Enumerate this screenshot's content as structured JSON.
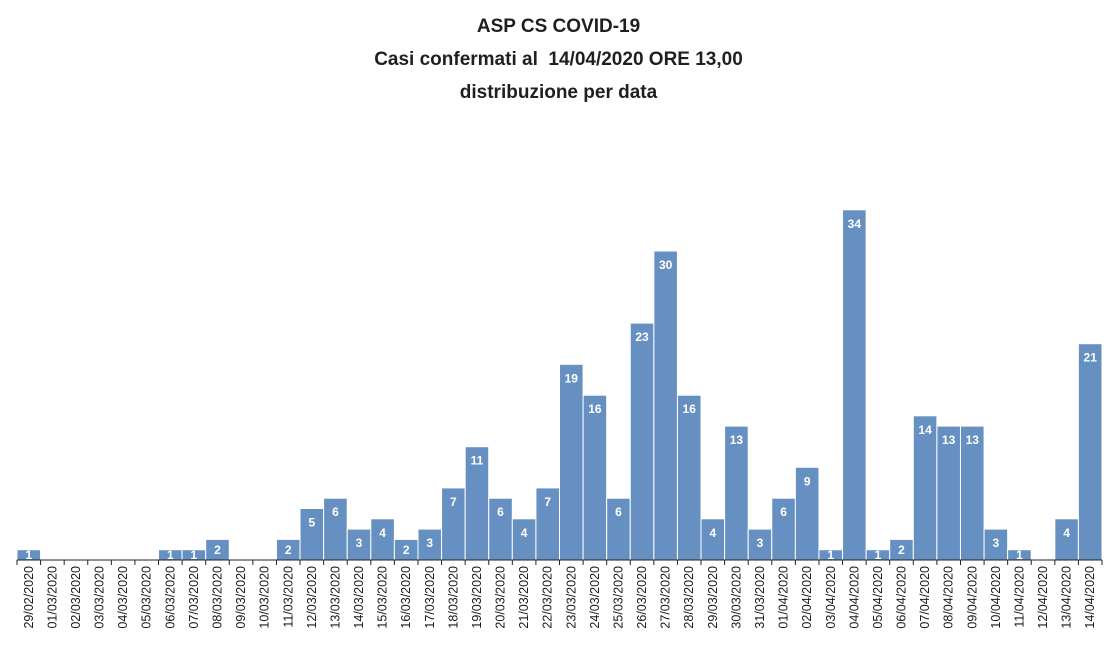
{
  "chart_data": {
    "type": "bar",
    "title": "ASP CS COVID-19",
    "subtitle_lines": [
      "Casi confermati al  14/04/2020 ORE 13,00",
      "distribuzione per data"
    ],
    "xlabel": "",
    "ylabel": "",
    "ylim": [
      0,
      34
    ],
    "grid": false,
    "legend": "none",
    "bar_color": "#6790c2",
    "label_color": "#ffffff",
    "categories": [
      "29/02/2020",
      "01/03/2020",
      "02/03/2020",
      "03/03/2020",
      "04/03/2020",
      "05/03/2020",
      "06/03/2020",
      "07/03/2020",
      "08/03/2020",
      "09/03/2020",
      "10/03/2020",
      "11/03/2020",
      "12/03/2020",
      "13/03/2020",
      "14/03/2020",
      "15/03/2020",
      "16/03/2020",
      "17/03/2020",
      "18/03/2020",
      "19/03/2020",
      "20/03/2020",
      "21/03/2020",
      "22/03/2020",
      "23/03/2020",
      "24/03/2020",
      "25/03/2020",
      "26/03/2020",
      "27/03/2020",
      "28/03/2020",
      "29/03/2020",
      "30/03/2020",
      "31/03/2020",
      "01/04/2020",
      "02/04/2020",
      "03/04/2020",
      "04/04/2020",
      "05/04/2020",
      "06/04/2020",
      "07/04/2020",
      "08/04/2020",
      "09/04/2020",
      "10/04/2020",
      "11/04/2020",
      "12/04/2020",
      "13/04/2020",
      "14/04/2020"
    ],
    "values": [
      1,
      0,
      0,
      0,
      0,
      0,
      1,
      1,
      2,
      0,
      0,
      2,
      5,
      6,
      3,
      4,
      2,
      3,
      7,
      11,
      6,
      4,
      7,
      19,
      16,
      6,
      23,
      30,
      16,
      4,
      13,
      3,
      6,
      9,
      1,
      34,
      1,
      2,
      14,
      13,
      13,
      3,
      1,
      0,
      4,
      21
    ]
  }
}
